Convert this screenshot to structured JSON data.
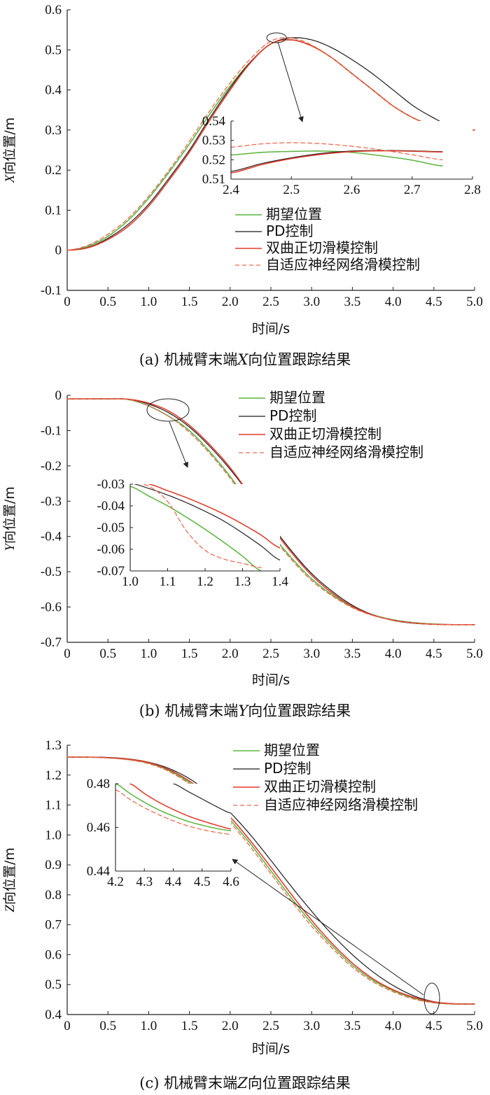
{
  "colors": {
    "desired": "#5cb53f",
    "pd": "#1a1a1a",
    "tanh": "#e03a2a",
    "adaptive": "#e8694f",
    "axis": "#222222"
  },
  "legend": [
    "期望位置",
    "PD控制",
    "双曲正切滑模控制",
    "自适应神经网络滑模控制"
  ],
  "chart_data": [
    {
      "type": "line",
      "ylabel_var": "X",
      "ylabel": "向位置/m",
      "xlabel": "时间/s",
      "caption": {
        "pre": "(a)  机械臂末端",
        "var": "X",
        "post": "向位置跟踪结果"
      },
      "xlim": [
        0,
        5
      ],
      "ylim": [
        -0.1,
        0.6
      ],
      "xticks": [
        0,
        0.5,
        1.0,
        1.5,
        2.0,
        2.5,
        3.0,
        3.5,
        4.0,
        4.5,
        5.0
      ],
      "xtick_labels": [
        "0",
        "0.5",
        "1.0",
        "1.5",
        "2.0",
        "2.5",
        "3.0",
        "3.5",
        "4.0",
        "4.5",
        "5.0"
      ],
      "yticks": [
        -0.1,
        0,
        0.1,
        0.2,
        0.3,
        0.4,
        0.5,
        0.6
      ],
      "ytick_labels": [
        "-0.1",
        "0",
        "0.1",
        "0.2",
        "0.3",
        "0.4",
        "0.5",
        "0.6"
      ],
      "x": [
        0,
        0.25,
        0.5,
        0.75,
        1.0,
        1.25,
        1.5,
        1.75,
        2.0,
        2.25,
        2.5,
        2.75,
        3.0,
        3.25,
        3.5,
        3.75,
        4.0,
        4.25,
        4.5,
        4.75,
        5.0
      ],
      "series": [
        {
          "name": "期望位置",
          "values": [
            0,
            0.01,
            0.035,
            0.075,
            0.13,
            0.195,
            0.265,
            0.34,
            0.41,
            0.47,
            0.515,
            0.525,
            0.51,
            0.48,
            0.44,
            0.4,
            0.36,
            0.33,
            0.31,
            0.3,
            0.3
          ]
        },
        {
          "name": "PD控制",
          "values": [
            0,
            0.007,
            0.03,
            0.065,
            0.115,
            0.18,
            0.25,
            0.33,
            0.405,
            0.47,
            0.515,
            0.53,
            0.525,
            0.505,
            0.475,
            0.44,
            0.4,
            0.36,
            0.33,
            0.305,
            0.3
          ]
        },
        {
          "name": "双曲正切滑模控制",
          "values": [
            0,
            0.006,
            0.027,
            0.06,
            0.11,
            0.175,
            0.245,
            0.325,
            0.4,
            0.468,
            0.515,
            0.525,
            0.51,
            0.48,
            0.44,
            0.4,
            0.36,
            0.33,
            0.31,
            0.3,
            0.3
          ]
        },
        {
          "name": "自适应神经网络滑模控制",
          "values": [
            0,
            0.012,
            0.04,
            0.08,
            0.135,
            0.2,
            0.272,
            0.348,
            0.418,
            0.478,
            0.522,
            0.53,
            0.512,
            0.48,
            0.44,
            0.4,
            0.36,
            0.33,
            0.31,
            0.3,
            0.3
          ]
        }
      ],
      "inset": {
        "xlim": [
          2.4,
          2.8
        ],
        "ylim": [
          0.51,
          0.54
        ],
        "xticks": [
          2.4,
          2.5,
          2.6,
          2.7,
          2.8
        ],
        "xtick_labels": [
          "2.4",
          "2.5",
          "2.6",
          "2.7",
          "2.8"
        ],
        "yticks": [
          0.51,
          0.52,
          0.53,
          0.54
        ],
        "ytick_labels": [
          "0.51",
          "0.52",
          "0.53",
          "0.54"
        ],
        "x": [
          2.4,
          2.45,
          2.5,
          2.55,
          2.6,
          2.65,
          2.7,
          2.75
        ],
        "series": [
          {
            "name": "期望位置",
            "values": [
              0.5225,
              0.5238,
              0.5243,
              0.5245,
              0.5238,
              0.522,
              0.5198,
              0.5168
            ]
          },
          {
            "name": "PD控制",
            "values": [
              0.514,
              0.518,
              0.521,
              0.5233,
              0.5245,
              0.5248,
              0.5246,
              0.5242
            ]
          },
          {
            "name": "双曲正切滑模控制",
            "values": [
              0.5132,
              0.5174,
              0.5206,
              0.5228,
              0.5242,
              0.5246,
              0.5244,
              0.524
            ]
          },
          {
            "name": "自适应神经网络滑模控制",
            "values": [
              0.5265,
              0.5282,
              0.5288,
              0.5283,
              0.527,
              0.525,
              0.5226,
              0.52
            ]
          }
        ]
      }
    },
    {
      "type": "line",
      "ylabel_var": "Y",
      "ylabel": "向位置/m",
      "xlabel": "时间/s",
      "caption": {
        "pre": "(b)  机械臂末端",
        "var": "Y",
        "post": "向位置跟踪结果"
      },
      "xlim": [
        0,
        5
      ],
      "ylim": [
        -0.7,
        0
      ],
      "xticks": [
        0,
        0.5,
        1.0,
        1.5,
        2.0,
        2.5,
        3.0,
        3.5,
        4.0,
        4.5,
        5.0
      ],
      "xtick_labels": [
        "0",
        "0.5",
        "1.0",
        "1.5",
        "2.0",
        "2.5",
        "3.0",
        "3.5",
        "4.0",
        "4.5",
        "5.0"
      ],
      "yticks": [
        -0.7,
        -0.6,
        -0.5,
        -0.4,
        -0.3,
        -0.2,
        -0.1,
        0
      ],
      "ytick_labels": [
        "-0.7",
        "-0.6",
        "-0.5",
        "-0.4",
        "-0.3",
        "-0.2",
        "-0.1",
        "0"
      ],
      "x": [
        0,
        0.25,
        0.5,
        0.75,
        1.0,
        1.25,
        1.5,
        1.75,
        2.0,
        2.25,
        2.5,
        2.75,
        3.0,
        3.25,
        3.5,
        3.75,
        4.0,
        4.25,
        4.5,
        4.75,
        5.0
      ],
      "series": [
        {
          "name": "期望位置",
          "values": [
            -0.01,
            -0.01,
            -0.01,
            -0.012,
            -0.03,
            -0.06,
            -0.1,
            -0.16,
            -0.23,
            -0.31,
            -0.39,
            -0.46,
            -0.52,
            -0.565,
            -0.6,
            -0.622,
            -0.636,
            -0.644,
            -0.648,
            -0.65,
            -0.65
          ]
        },
        {
          "name": "PD控制",
          "values": [
            -0.01,
            -0.01,
            -0.01,
            -0.011,
            -0.025,
            -0.05,
            -0.09,
            -0.145,
            -0.21,
            -0.285,
            -0.365,
            -0.44,
            -0.505,
            -0.555,
            -0.595,
            -0.622,
            -0.638,
            -0.646,
            -0.649,
            -0.65,
            -0.65
          ]
        },
        {
          "name": "双曲正切滑模控制",
          "values": [
            -0.01,
            -0.01,
            -0.01,
            -0.011,
            -0.022,
            -0.045,
            -0.085,
            -0.14,
            -0.205,
            -0.285,
            -0.37,
            -0.445,
            -0.51,
            -0.56,
            -0.598,
            -0.623,
            -0.637,
            -0.645,
            -0.649,
            -0.65,
            -0.65
          ]
        },
        {
          "name": "自适应神经网络滑模控制",
          "values": [
            -0.01,
            -0.01,
            -0.01,
            -0.012,
            -0.03,
            -0.06,
            -0.105,
            -0.165,
            -0.235,
            -0.315,
            -0.395,
            -0.465,
            -0.525,
            -0.568,
            -0.602,
            -0.624,
            -0.637,
            -0.645,
            -0.649,
            -0.65,
            -0.65
          ]
        }
      ],
      "inset": {
        "xlim": [
          1.0,
          1.4
        ],
        "ylim": [
          -0.07,
          -0.03
        ],
        "xticks": [
          1.0,
          1.1,
          1.2,
          1.3,
          1.4
        ],
        "xtick_labels": [
          "1.0",
          "1.1",
          "1.2",
          "1.3",
          "1.4"
        ],
        "yticks": [
          -0.07,
          -0.06,
          -0.05,
          -0.04,
          -0.03
        ],
        "ytick_labels": [
          "-0.07",
          "-0.06",
          "-0.05",
          "-0.04",
          "-0.03"
        ],
        "x": [
          1.0,
          1.05,
          1.1,
          1.15,
          1.2,
          1.25,
          1.3,
          1.35,
          1.4
        ],
        "series": [
          {
            "name": "期望位置",
            "values": [
              -0.031,
              -0.0355,
              -0.04,
              -0.0452,
              -0.0508,
              -0.0568,
              -0.0632,
              -0.07,
              null
            ]
          },
          {
            "name": "PD控制",
            "values": [
              -0.0295,
              -0.032,
              -0.035,
              -0.0385,
              -0.0425,
              -0.047,
              -0.0525,
              -0.0585,
              -0.065
            ]
          },
          {
            "name": "双曲正切滑模控制",
            "values": [
              null,
              -0.03,
              -0.033,
              -0.0362,
              -0.0398,
              -0.0438,
              -0.0484,
              -0.0535,
              -0.0594
            ]
          },
          {
            "name": "自适应神经网络滑模控制",
            "values": [
              -0.0295,
              -0.031,
              -0.038,
              -0.0515,
              -0.0605,
              -0.0645,
              -0.0665,
              -0.0685,
              null
            ]
          }
        ]
      }
    },
    {
      "type": "line",
      "ylabel_var": "Z",
      "ylabel": "向位置/m",
      "xlabel": "时间/s",
      "caption": {
        "pre": "(c)  机械臂末端",
        "var": "Z",
        "post": "向位置跟踪结果"
      },
      "xlim": [
        0,
        5
      ],
      "ylim": [
        0.4,
        1.3
      ],
      "xticks": [
        0,
        0.5,
        1.0,
        1.5,
        2.0,
        2.5,
        3.0,
        3.5,
        4.0,
        4.5,
        5.0
      ],
      "xtick_labels": [
        "0",
        "0.5",
        "1.0",
        "1.5",
        "2.0",
        "2.5",
        "3.0",
        "3.5",
        "4.0",
        "4.5",
        "5.0"
      ],
      "yticks": [
        0.4,
        0.5,
        0.6,
        0.7,
        0.8,
        0.9,
        1.0,
        1.1,
        1.2,
        1.3
      ],
      "ytick_labels": [
        "0.4",
        "0.5",
        "0.6",
        "0.7",
        "0.8",
        "0.9",
        "1.0",
        "1.1",
        "1.2",
        "1.3"
      ],
      "x": [
        0,
        0.25,
        0.5,
        0.75,
        1.0,
        1.25,
        1.5,
        1.75,
        2.0,
        2.25,
        2.5,
        2.75,
        3.0,
        3.25,
        3.5,
        3.75,
        4.0,
        4.25,
        4.5,
        4.75,
        5.0
      ],
      "series": [
        {
          "name": "期望位置",
          "values": [
            1.26,
            1.26,
            1.258,
            1.252,
            1.24,
            1.215,
            1.175,
            1.12,
            1.05,
            0.97,
            0.88,
            0.79,
            0.705,
            0.63,
            0.565,
            0.515,
            0.48,
            0.455,
            0.44,
            0.435,
            0.435
          ]
        },
        {
          "name": "PD控制",
          "values": [
            1.26,
            1.26,
            1.259,
            1.254,
            1.243,
            1.222,
            1.188,
            1.138,
            1.075,
            1.0,
            0.915,
            0.828,
            0.745,
            0.668,
            0.6,
            0.543,
            0.497,
            0.463,
            0.443,
            0.436,
            0.435
          ]
        },
        {
          "name": "双曲正切滑模控制",
          "values": [
            1.26,
            1.26,
            1.258,
            1.253,
            1.242,
            1.218,
            1.18,
            1.128,
            1.06,
            0.98,
            0.892,
            0.802,
            0.715,
            0.638,
            0.572,
            0.52,
            0.483,
            0.458,
            0.442,
            0.436,
            0.435
          ]
        },
        {
          "name": "自适应神经网络滑模控制",
          "values": [
            1.26,
            1.26,
            1.257,
            1.251,
            1.238,
            1.212,
            1.17,
            1.113,
            1.042,
            0.96,
            0.87,
            0.78,
            0.695,
            0.622,
            0.558,
            0.51,
            0.476,
            0.452,
            0.439,
            0.435,
            0.435
          ]
        }
      ],
      "inset": {
        "xlim": [
          4.2,
          4.6
        ],
        "ylim": [
          0.44,
          0.48
        ],
        "xticks": [
          4.2,
          4.3,
          4.4,
          4.5,
          4.6
        ],
        "xtick_labels": [
          "4.2",
          "4.3",
          "4.4",
          "4.5",
          "4.6"
        ],
        "yticks": [
          0.44,
          0.46,
          0.48
        ],
        "ytick_labels": [
          "0.44",
          "0.46",
          "0.48"
        ],
        "x": [
          4.2,
          4.25,
          4.3,
          4.35,
          4.4,
          4.45,
          4.5,
          4.55,
          4.6
        ],
        "series": [
          {
            "name": "期望位置",
            "values": [
              0.48,
              0.4755,
              0.4715,
              0.468,
              0.4652,
              0.4628,
              0.461,
              0.4595,
              0.4585
            ]
          },
          {
            "name": "PD控制",
            "values": [
              null,
              null,
              null,
              null,
              0.48,
              0.4765,
              0.473,
              0.4695,
              0.4665
            ]
          },
          {
            "name": "双曲正切滑模控制",
            "values": [
              null,
              0.48,
              0.4755,
              0.4715,
              0.4682,
              0.4653,
              0.463,
              0.461,
              0.4593
            ]
          },
          {
            "name": "自适应神经网络滑模控制",
            "values": [
              0.4772,
              0.4728,
              0.469,
              0.4658,
              0.463,
              0.4607,
              0.459,
              0.4577,
              0.4568
            ]
          }
        ]
      }
    }
  ]
}
